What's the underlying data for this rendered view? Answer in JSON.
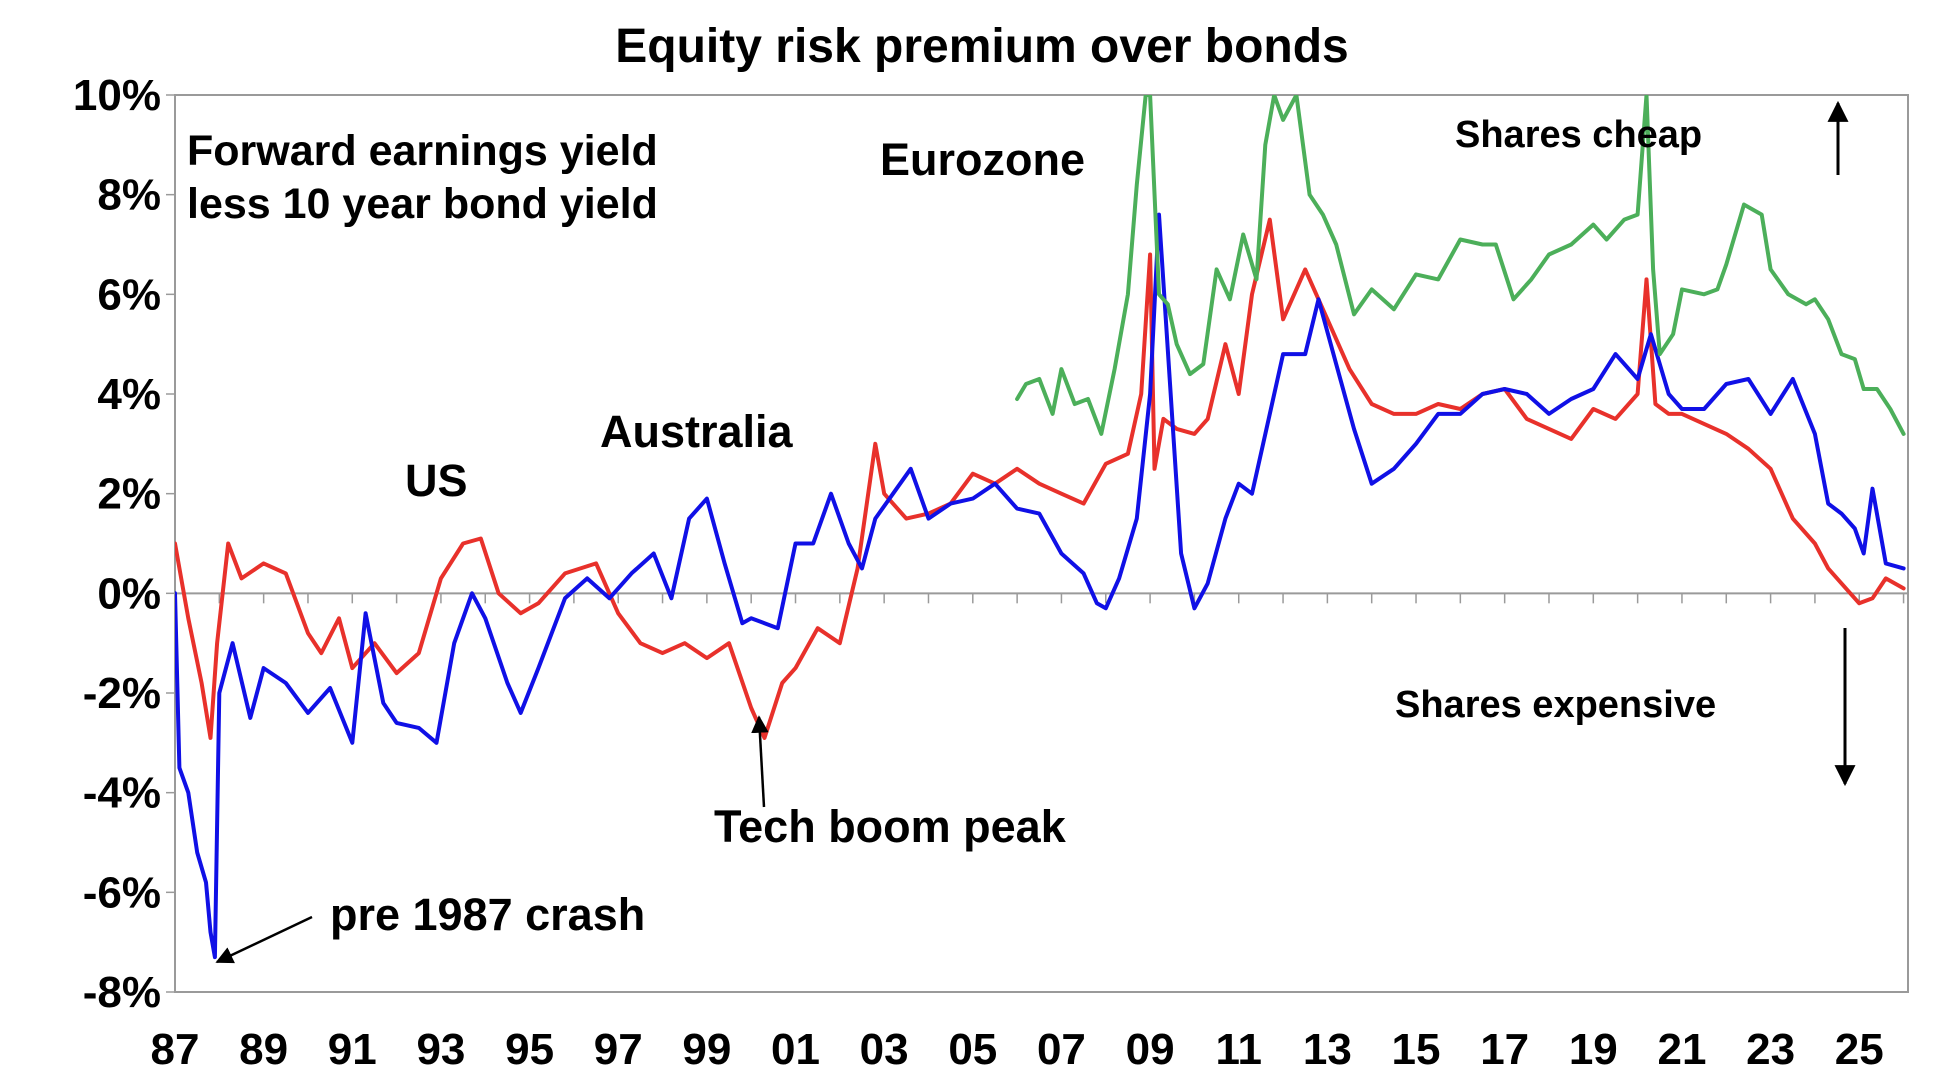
{
  "chart_data": {
    "type": "line",
    "title": "Equity risk premium over bonds",
    "subtitle": [
      "Forward earnings yield",
      "less 10 year bond yield"
    ],
    "xlabel": "",
    "ylabel": "",
    "xlim": [
      1987,
      2026.1
    ],
    "ylim": [
      -8,
      10
    ],
    "x_ticks": [
      1987,
      1989,
      1991,
      1993,
      1995,
      1997,
      1999,
      2001,
      2003,
      2005,
      2007,
      2009,
      2011,
      2013,
      2015,
      2017,
      2019,
      2021,
      2023,
      2025
    ],
    "x_tick_labels": [
      "87",
      "89",
      "91",
      "93",
      "95",
      "97",
      "99",
      "01",
      "03",
      "05",
      "07",
      "09",
      "11",
      "13",
      "15",
      "17",
      "19",
      "21",
      "23",
      "25"
    ],
    "y_ticks": [
      10,
      8,
      6,
      4,
      2,
      0,
      -2,
      -4,
      -6,
      -8
    ],
    "y_tick_labels": [
      "10%",
      "8%",
      "6%",
      "4%",
      "2%",
      "0%",
      "-2%",
      "-4%",
      "-6%",
      "-8%"
    ],
    "grid": false,
    "series": [
      {
        "name": "US",
        "color": "#e8312b",
        "x": [
          1987.0,
          1987.3,
          1987.6,
          1987.8,
          1987.95,
          1988.2,
          1988.5,
          1989.0,
          1989.5,
          1990.0,
          1990.3,
          1990.7,
          1991.0,
          1991.5,
          1992.0,
          1992.5,
          1993.0,
          1993.5,
          1993.9,
          1994.3,
          1994.8,
          1995.2,
          1995.8,
          1996.5,
          1997.0,
          1997.5,
          1998.0,
          1998.5,
          1999.0,
          1999.5,
          2000.0,
          2000.3,
          2000.7,
          2001.0,
          2001.5,
          2002.0,
          2002.4,
          2002.8,
          2003.0,
          2003.5,
          2004.0,
          2004.5,
          2005.0,
          2005.5,
          2006.0,
          2006.5,
          2007.0,
          2007.5,
          2008.0,
          2008.5,
          2008.8,
          2009.0,
          2009.1,
          2009.3,
          2009.6,
          2010.0,
          2010.3,
          2010.7,
          2011.0,
          2011.3,
          2011.7,
          2012.0,
          2012.5,
          2013.0,
          2013.5,
          2014.0,
          2014.5,
          2015.0,
          2015.5,
          2016.0,
          2016.5,
          2017.0,
          2017.5,
          2018.0,
          2018.5,
          2019.0,
          2019.5,
          2020.0,
          2020.2,
          2020.4,
          2020.7,
          2021.0,
          2021.5,
          2022.0,
          2022.5,
          2023.0,
          2023.5,
          2024.0,
          2024.3,
          2024.6,
          2025.0,
          2025.3,
          2025.6,
          2026.0
        ],
        "y": [
          1.0,
          -0.5,
          -1.8,
          -2.9,
          -1.0,
          1.0,
          0.3,
          0.6,
          0.4,
          -0.8,
          -1.2,
          -0.5,
          -1.5,
          -1.0,
          -1.6,
          -1.2,
          0.3,
          1.0,
          1.1,
          0.0,
          -0.4,
          -0.2,
          0.4,
          0.6,
          -0.4,
          -1.0,
          -1.2,
          -1.0,
          -1.3,
          -1.0,
          -2.3,
          -2.9,
          -1.8,
          -1.5,
          -0.7,
          -1.0,
          0.5,
          3.0,
          2.0,
          1.5,
          1.6,
          1.8,
          2.4,
          2.2,
          2.5,
          2.2,
          2.0,
          1.8,
          2.6,
          2.8,
          4.0,
          6.8,
          2.5,
          3.5,
          3.3,
          3.2,
          3.5,
          5.0,
          4.0,
          6.0,
          7.5,
          5.5,
          6.5,
          5.5,
          4.5,
          3.8,
          3.6,
          3.6,
          3.8,
          3.7,
          4.0,
          4.1,
          3.5,
          3.3,
          3.1,
          3.7,
          3.5,
          4.0,
          6.3,
          3.8,
          3.6,
          3.6,
          3.4,
          3.2,
          2.9,
          2.5,
          1.5,
          1.0,
          0.5,
          0.2,
          -0.2,
          -0.1,
          0.3,
          0.1
        ]
      },
      {
        "name": "Australia",
        "color": "#1010e6",
        "x": [
          1987.0,
          1987.1,
          1987.3,
          1987.5,
          1987.7,
          1987.8,
          1987.9,
          1988.0,
          1988.3,
          1988.7,
          1989.0,
          1989.5,
          1990.0,
          1990.5,
          1991.0,
          1991.3,
          1991.7,
          1992.0,
          1992.5,
          1992.9,
          1993.3,
          1993.7,
          1994.0,
          1994.5,
          1994.8,
          1995.2,
          1995.8,
          1996.3,
          1996.8,
          1997.3,
          1997.8,
          1998.2,
          1998.6,
          1999.0,
          1999.4,
          1999.8,
          2000.0,
          2000.3,
          2000.6,
          2001.0,
          2001.4,
          2001.8,
          2002.2,
          2002.5,
          2002.8,
          2003.2,
          2003.6,
          2004.0,
          2004.5,
          2005.0,
          2005.5,
          2006.0,
          2006.5,
          2007.0,
          2007.5,
          2007.8,
          2008.0,
          2008.3,
          2008.7,
          2009.0,
          2009.2,
          2009.5,
          2009.7,
          2010.0,
          2010.3,
          2010.7,
          2011.0,
          2011.3,
          2011.7,
          2012.0,
          2012.5,
          2012.8,
          2013.2,
          2013.6,
          2014.0,
          2014.5,
          2015.0,
          2015.5,
          2016.0,
          2016.5,
          2017.0,
          2017.5,
          2018.0,
          2018.5,
          2019.0,
          2019.5,
          2020.0,
          2020.3,
          2020.7,
          2021.0,
          2021.5,
          2022.0,
          2022.5,
          2023.0,
          2023.5,
          2024.0,
          2024.3,
          2024.6,
          2024.9,
          2025.1,
          2025.3,
          2025.6,
          2026.0
        ],
        "y": [
          0.0,
          -3.5,
          -4.0,
          -5.2,
          -5.8,
          -6.8,
          -7.3,
          -2.0,
          -1.0,
          -2.5,
          -1.5,
          -1.8,
          -2.4,
          -1.9,
          -3.0,
          -0.4,
          -2.2,
          -2.6,
          -2.7,
          -3.0,
          -1.0,
          0.0,
          -0.5,
          -1.8,
          -2.4,
          -1.5,
          -0.1,
          0.3,
          -0.1,
          0.4,
          0.8,
          -0.1,
          1.5,
          1.9,
          0.6,
          -0.6,
          -0.5,
          -0.6,
          -0.7,
          1.0,
          1.0,
          2.0,
          1.0,
          0.5,
          1.5,
          2.0,
          2.5,
          1.5,
          1.8,
          1.9,
          2.2,
          1.7,
          1.6,
          0.8,
          0.4,
          -0.2,
          -0.3,
          0.3,
          1.5,
          4.0,
          7.6,
          3.5,
          0.8,
          -0.3,
          0.2,
          1.5,
          2.2,
          2.0,
          3.6,
          4.8,
          4.8,
          5.9,
          4.6,
          3.3,
          2.2,
          2.5,
          3.0,
          3.6,
          3.6,
          4.0,
          4.1,
          4.0,
          3.6,
          3.9,
          4.1,
          4.8,
          4.3,
          5.2,
          4.0,
          3.7,
          3.7,
          4.2,
          4.3,
          3.6,
          4.3,
          3.2,
          1.8,
          1.6,
          1.3,
          0.8,
          2.1,
          0.6,
          0.5
        ]
      },
      {
        "name": "Eurozone",
        "color": "#4caf5a",
        "x": [
          2006.0,
          2006.2,
          2006.5,
          2006.8,
          2007.0,
          2007.3,
          2007.6,
          2007.9,
          2008.2,
          2008.5,
          2008.7,
          2008.9,
          2009.0,
          2009.2,
          2009.4,
          2009.6,
          2009.9,
          2010.2,
          2010.5,
          2010.8,
          2011.1,
          2011.4,
          2011.6,
          2011.8,
          2012.0,
          2012.3,
          2012.6,
          2012.9,
          2013.2,
          2013.6,
          2014.0,
          2014.5,
          2015.0,
          2015.5,
          2016.0,
          2016.5,
          2016.8,
          2017.2,
          2017.6,
          2018.0,
          2018.5,
          2019.0,
          2019.3,
          2019.7,
          2020.0,
          2020.2,
          2020.35,
          2020.5,
          2020.8,
          2021.0,
          2021.5,
          2021.8,
          2022.0,
          2022.4,
          2022.8,
          2023.0,
          2023.4,
          2023.8,
          2024.0,
          2024.3,
          2024.6,
          2024.9,
          2025.1,
          2025.4,
          2025.7,
          2026.0
        ],
        "y": [
          3.9,
          4.2,
          4.3,
          3.6,
          4.5,
          3.8,
          3.9,
          3.2,
          4.5,
          6.0,
          8.2,
          10.0,
          10.0,
          6.0,
          5.8,
          5.0,
          4.4,
          4.6,
          6.5,
          5.9,
          7.2,
          6.3,
          9.0,
          10.0,
          9.5,
          10.0,
          8.0,
          7.6,
          7.0,
          5.6,
          6.1,
          5.7,
          6.4,
          6.3,
          7.1,
          7.0,
          7.0,
          5.9,
          6.3,
          6.8,
          7.0,
          7.4,
          7.1,
          7.5,
          7.6,
          10.0,
          6.5,
          4.8,
          5.2,
          6.1,
          6.0,
          6.1,
          6.6,
          7.8,
          7.6,
          6.5,
          6.0,
          5.8,
          5.9,
          5.5,
          4.8,
          4.7,
          4.1,
          4.1,
          3.7,
          3.2
        ]
      }
    ],
    "annotations": [
      {
        "text": "Eurozone",
        "color": "#4caf5a"
      },
      {
        "text": "Australia",
        "color": "#1010e6"
      },
      {
        "text": "US",
        "color": "#e8312b"
      },
      {
        "text": "Shares cheap",
        "color": "#000000"
      },
      {
        "text": "Shares expensive",
        "color": "#000000"
      },
      {
        "text": "Tech boom peak",
        "color": "#000000"
      },
      {
        "text": "pre 1987 crash",
        "color": "#000000"
      }
    ]
  }
}
